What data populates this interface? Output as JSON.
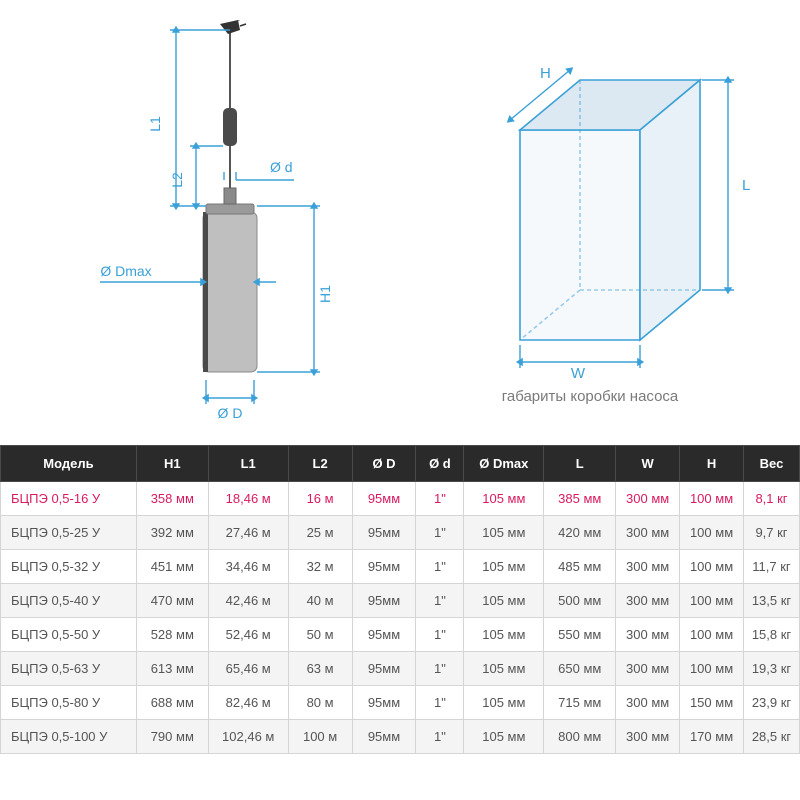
{
  "diagram_left": {
    "labels": {
      "L1": "L1",
      "L2": "L2",
      "Dmax": "Ø Dmax",
      "H1": "H1",
      "D": "Ø D",
      "d": "Ø d"
    },
    "colors": {
      "dim_line": "#3aa0d8",
      "dim_line_w": 1.4,
      "text_color": "#3aa0d8",
      "pump_body": "#bfbfbf",
      "pump_body_stroke": "#888888",
      "pump_top": "#4a4a4a",
      "cable": "#555555",
      "plug": "#333333",
      "float": "#4a4a4a"
    },
    "text_fontsize": 14
  },
  "diagram_right": {
    "labels": {
      "H": "H",
      "W": "W",
      "L": "L"
    },
    "caption": "габариты коробки насоса",
    "colors": {
      "edge": "#3aa0d8",
      "edge_w": 1.6,
      "face_front": "#f5f9fc",
      "face_top": "#dce9f2",
      "face_side": "#e8f1f7",
      "text_color": "#3aa0d8",
      "bg": "#ffffff"
    },
    "text_fontsize": 15
  },
  "table": {
    "columns": [
      "Модель",
      "H1",
      "L1",
      "L2",
      "Ø D",
      "Ø d",
      "Ø Dmax",
      "L",
      "W",
      "H",
      "Вес"
    ],
    "col_widths_pct": [
      17,
      9,
      10,
      8,
      8,
      6,
      10,
      9,
      8,
      8,
      7
    ],
    "highlight_row_index": 0,
    "rows": [
      [
        "БЦПЭ 0,5-16 У",
        "358 мм",
        "18,46 м",
        "16 м",
        "95мм",
        "1\"",
        "105 мм",
        "385 мм",
        "300 мм",
        "100 мм",
        "8,1 кг"
      ],
      [
        "БЦПЭ 0,5-25 У",
        "392 мм",
        "27,46 м",
        "25 м",
        "95мм",
        "1\"",
        "105 мм",
        "420 мм",
        "300 мм",
        "100 мм",
        "9,7 кг"
      ],
      [
        "БЦПЭ 0,5-32 У",
        "451 мм",
        "34,46 м",
        "32 м",
        "95мм",
        "1\"",
        "105 мм",
        "485 мм",
        "300 мм",
        "100 мм",
        "11,7 кг"
      ],
      [
        "БЦПЭ 0,5-40 У",
        "470 мм",
        "42,46 м",
        "40 м",
        "95мм",
        "1\"",
        "105 мм",
        "500 мм",
        "300 мм",
        "100 мм",
        "13,5 кг"
      ],
      [
        "БЦПЭ 0,5-50 У",
        "528 мм",
        "52,46 м",
        "50 м",
        "95мм",
        "1\"",
        "105 мм",
        "550 мм",
        "300 мм",
        "100 мм",
        "15,8 кг"
      ],
      [
        "БЦПЭ 0,5-63 У",
        "613 мм",
        "65,46 м",
        "63 м",
        "95мм",
        "1\"",
        "105 мм",
        "650 мм",
        "300 мм",
        "100 мм",
        "19,3 кг"
      ],
      [
        "БЦПЭ 0,5-80 У",
        "688 мм",
        "82,46 м",
        "80 м",
        "95мм",
        "1\"",
        "105 мм",
        "715 мм",
        "300 мм",
        "150 мм",
        "23,9 кг"
      ],
      [
        "БЦПЭ 0,5-100 У",
        "790 мм",
        "102,46 м",
        "100 м",
        "95мм",
        "1\"",
        "105 мм",
        "800 мм",
        "300 мм",
        "170 мм",
        "28,5 кг"
      ]
    ],
    "header_bg": "#2a2a2a",
    "header_text": "#ffffff",
    "row_alt_bg": "#f4f4f4",
    "border_color": "#d5d5d5",
    "highlight_color": "#d81b60",
    "text_color": "#555555",
    "font_size": 13
  }
}
